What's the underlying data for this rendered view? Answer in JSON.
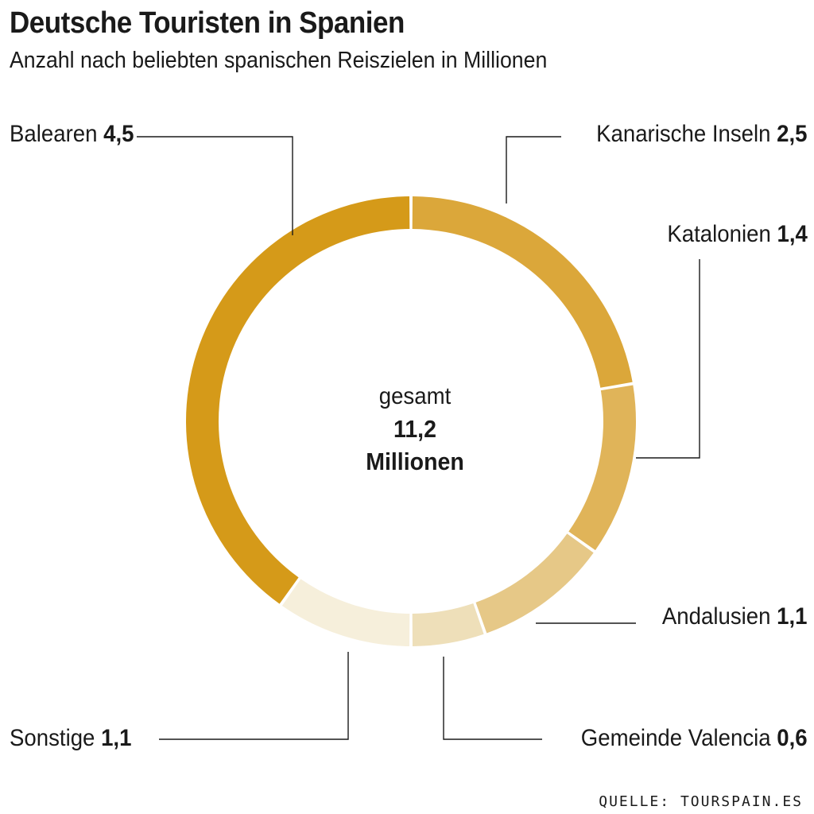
{
  "title": "Deutsche Touristen in Spanien",
  "subtitle": "Anzahl nach beliebten spanischen Reiszielen in Millionen",
  "center": {
    "caption": "gesamt",
    "total": "11,2",
    "unit": "Millionen"
  },
  "source": "QUELLE: TOURSPAIN.ES",
  "chart_data": {
    "type": "pie",
    "variant": "donut",
    "total": 11.2,
    "slices": [
      {
        "label": "Kanarische Inseln",
        "value": 2.5,
        "value_text": "2,5",
        "color": "#dba73a"
      },
      {
        "label": "Katalonien",
        "value": 1.4,
        "value_text": "1,4",
        "color": "#e0b459"
      },
      {
        "label": "Andalusien",
        "value": 1.1,
        "value_text": "1,1",
        "color": "#e6c887"
      },
      {
        "label": "Gemeinde Valencia",
        "value": 0.6,
        "value_text": "0,6",
        "color": "#eedfb9"
      },
      {
        "label": "Sonstige",
        "value": 1.1,
        "value_text": "1,1",
        "color": "#f6efdb"
      },
      {
        "label": "Balearen",
        "value": 4.5,
        "value_text": "4,5",
        "color": "#d59a19"
      }
    ]
  }
}
